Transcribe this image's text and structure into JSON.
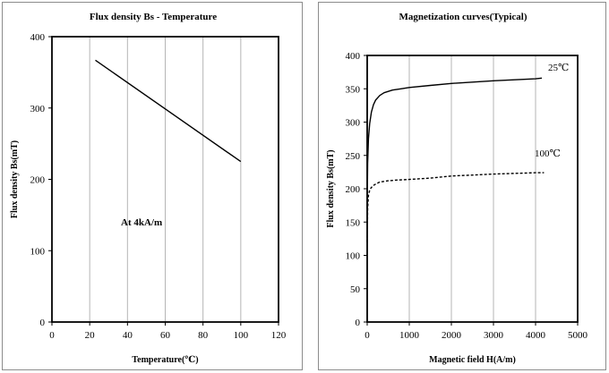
{
  "chart_data": [
    {
      "type": "line",
      "title": "Flux density Bs - Temperature",
      "xlabel": "Temperature(℃)",
      "ylabel": "Flux density Bs(mT)",
      "xlim": [
        0,
        120
      ],
      "ylim": [
        0,
        400
      ],
      "xticks": [
        0,
        20,
        40,
        60,
        80,
        100,
        120
      ],
      "yticks": [
        0,
        100,
        200,
        300,
        400
      ],
      "grid": "vertical",
      "annotation": "At 4kA/m",
      "series": [
        {
          "x": [
            23,
            100
          ],
          "y": [
            367,
            225
          ],
          "style": "solid"
        }
      ]
    },
    {
      "type": "line",
      "title": "Magnetization curves(Typical)",
      "xlabel": "Magnetic field H(A/m)",
      "ylabel": "Flux density Bs(mT)",
      "xlim": [
        0,
        5000
      ],
      "ylim": [
        0,
        400
      ],
      "xticks": [
        0,
        1000,
        2000,
        3000,
        4000,
        5000
      ],
      "yticks": [
        0,
        50,
        100,
        150,
        200,
        250,
        300,
        350,
        400
      ],
      "grid": "vertical",
      "series": [
        {
          "name": "25℃",
          "style": "solid",
          "x": [
            0,
            10,
            30,
            60,
            100,
            150,
            200,
            300,
            400,
            600,
            800,
            1000,
            1500,
            2000,
            3000,
            4000,
            4150
          ],
          "y": [
            170,
            238,
            275,
            298,
            315,
            326,
            333,
            340,
            344,
            348,
            350,
            352,
            355,
            358,
            362,
            365,
            366
          ]
        },
        {
          "name": "100℃",
          "style": "dashed",
          "x": [
            0,
            10,
            30,
            60,
            100,
            150,
            200,
            300,
            500,
            700,
            1000,
            1500,
            2000,
            3000,
            4000,
            4200
          ],
          "y": [
            120,
            170,
            190,
            198,
            202,
            205,
            207,
            210,
            212,
            213,
            214,
            216,
            219,
            222,
            224,
            224
          ]
        }
      ]
    }
  ]
}
